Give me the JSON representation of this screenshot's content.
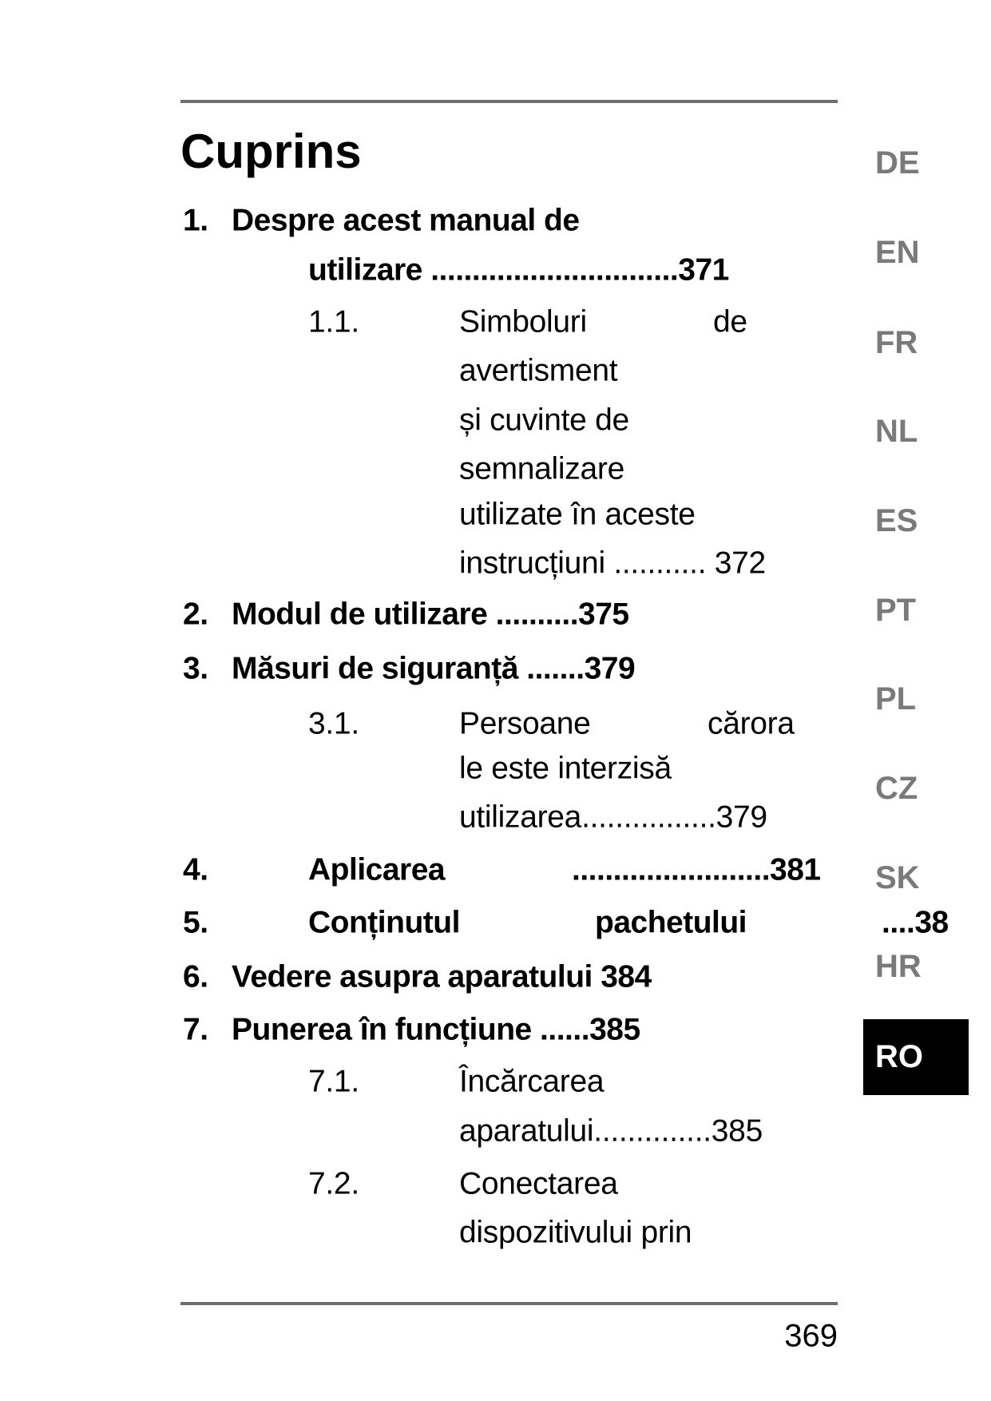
{
  "title": "Cuprins",
  "lines": [
    {
      "num": "1.",
      "text": "Despre acest manual de"
    },
    {
      "text": "utilizare ..............................371"
    },
    {
      "num": "1.1.",
      "text": "Simboluri",
      "extra": "de"
    },
    {
      "text": "avertisment"
    },
    {
      "text": "și cuvinte de"
    },
    {
      "text": "semnalizare"
    },
    {
      "text": "utilizate în aceste"
    },
    {
      "text": "instrucțiuni ........... 372"
    },
    {
      "num": "2.",
      "text": "Modul de utilizare ..........375"
    },
    {
      "num": "3.",
      "text": "Măsuri de siguranță .......379"
    },
    {
      "num": "3.1.",
      "text": "Persoane",
      "extra": "cărora"
    },
    {
      "text": "le este interzisă"
    },
    {
      "text": "utilizarea................379"
    },
    {
      "num": "4.",
      "text": "Aplicarea",
      "extra": "........................381"
    },
    {
      "num": "5.",
      "text": "Conținutul",
      "extra": "pachetului",
      "extra2": "....38"
    },
    {
      "num": "6.",
      "text": "Vedere asupra aparatului 384"
    },
    {
      "num": "7.",
      "text": "Punerea în funcțiune ......385"
    },
    {
      "num": "7.1.",
      "text": "Încărcarea"
    },
    {
      "text": "aparatului..............385"
    },
    {
      "num": "7.2.",
      "text": "Conectarea"
    },
    {
      "text": "dispozitivului prin"
    }
  ],
  "languages": [
    "DE",
    "EN",
    "FR",
    "NL",
    "ES",
    "PT",
    "PL",
    "CZ",
    "SK",
    "HR"
  ],
  "active_language": "RO",
  "page_number": "369"
}
